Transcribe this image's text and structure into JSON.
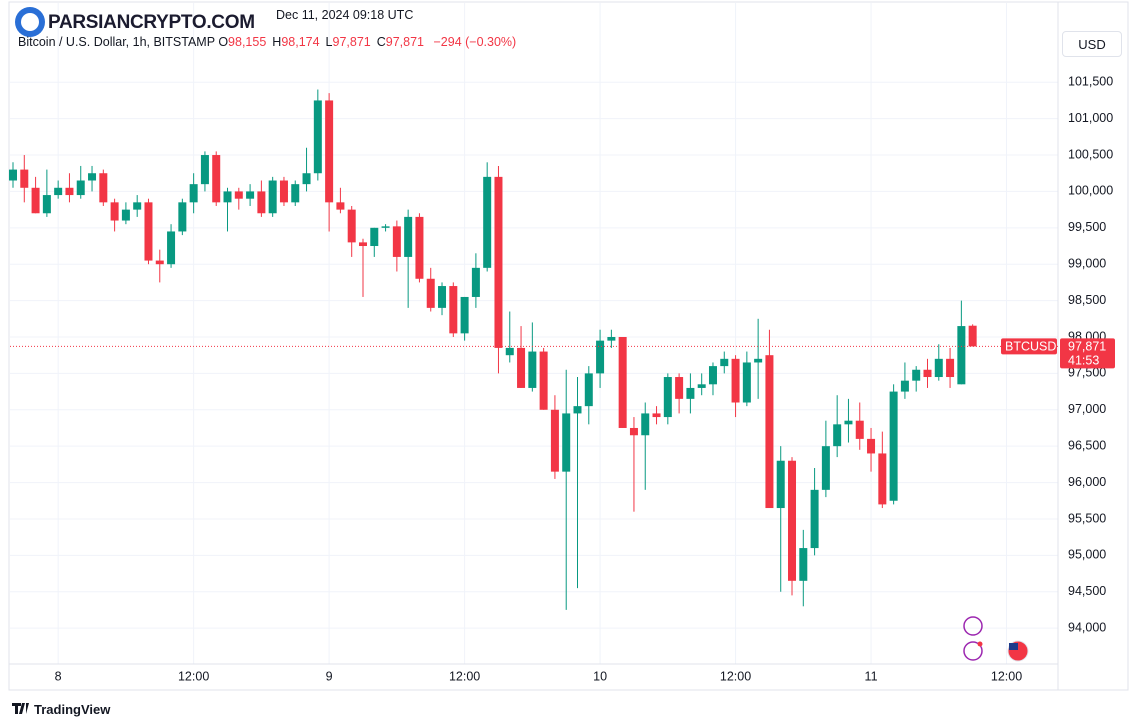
{
  "header": {
    "watermark": "PARSIANCRYPTO.COM",
    "published": "Dec 11, 2024 09:18 UTC",
    "symbol": "Bitcoin / U.S. Dollar, 1h, BITSTAMP",
    "ohlc": [
      {
        "label": "O",
        "value": "98,155"
      },
      {
        "label": "H",
        "value": "98,174"
      },
      {
        "label": "L",
        "value": "97,871"
      },
      {
        "label": "C",
        "value": "97,871"
      }
    ],
    "change": "−294 (−0.30%)",
    "currency": "USD"
  },
  "footer": {
    "brand": "TradingView"
  },
  "chart_data": {
    "type": "candlestick",
    "up_color": "#089981",
    "down_color": "#f23645",
    "grid": true,
    "categories": [
      null,
      null,
      null,
      null,
      "8",
      null,
      null,
      null,
      null,
      null,
      null,
      null,
      null,
      null,
      null,
      null,
      "12:00",
      null,
      null,
      null,
      null,
      null,
      null,
      null,
      null,
      null,
      null,
      null,
      "9",
      null,
      null,
      null,
      null,
      null,
      null,
      null,
      null,
      null,
      null,
      null,
      "12:00",
      null,
      null,
      null,
      null,
      null,
      null,
      null,
      null,
      null,
      null,
      null,
      "10",
      null,
      null,
      null,
      null,
      null,
      null,
      null,
      null,
      null,
      null,
      null,
      "12:00",
      null,
      null,
      null,
      null,
      null,
      null,
      null,
      null,
      null,
      null,
      null,
      "11",
      null,
      null,
      null,
      null,
      null,
      null,
      null,
      null,
      null,
      null,
      null,
      "12:00"
    ],
    "open": [
      100150,
      100300,
      100050,
      99700,
      99950,
      100050,
      99950,
      100150,
      100250,
      99850,
      99600,
      99750,
      99850,
      99050,
      99000,
      99450,
      99850,
      100100,
      100500,
      99850,
      100000,
      99900,
      100000,
      99700,
      100150,
      99850,
      100100,
      100250,
      101250,
      99850,
      99750,
      99300,
      99250,
      99500,
      99520,
      99100,
      99650,
      98800,
      98400,
      98700,
      98050,
      98550,
      98950,
      100200,
      97750,
      97850,
      97300,
      97800,
      97000,
      96150,
      96950,
      97050,
      97500,
      97950,
      98000,
      96750,
      96650,
      96950,
      96900,
      97450,
      97150,
      97300,
      97350,
      97600,
      97700,
      97100,
      97650,
      97750,
      95650,
      96300,
      94650,
      95100,
      95900,
      96500,
      96800,
      96850,
      96600,
      96400,
      95750,
      97250,
      97400,
      97550,
      97450,
      97700,
      97350,
      98155,
      null,
      null,
      null
    ],
    "high": [
      100400,
      100500,
      100200,
      100300,
      100150,
      100250,
      100350,
      100350,
      100300,
      99900,
      99850,
      99950,
      99900,
      99200,
      99550,
      99900,
      100250,
      100550,
      100550,
      100050,
      100050,
      100100,
      100150,
      100200,
      100200,
      100150,
      100600,
      101400,
      101350,
      100050,
      99800,
      99350,
      99500,
      99550,
      99600,
      99750,
      99700,
      98950,
      98750,
      98750,
      98550,
      99150,
      100400,
      100350,
      98350,
      98150,
      98200,
      97850,
      97200,
      97550,
      97450,
      97600,
      98100,
      98100,
      98000,
      96900,
      97100,
      97050,
      97500,
      97500,
      97500,
      97500,
      97650,
      97800,
      97750,
      97800,
      98250,
      98100,
      96500,
      96350,
      95350,
      96200,
      96850,
      97200,
      97150,
      97100,
      96750,
      96700,
      97350,
      97650,
      97600,
      97700,
      97900,
      97850,
      98500,
      98174,
      null,
      null,
      null
    ],
    "low": [
      100050,
      99850,
      99700,
      99650,
      99900,
      99850,
      99900,
      100000,
      99800,
      99450,
      99550,
      99650,
      99000,
      98750,
      98950,
      99400,
      99700,
      100000,
      99800,
      99450,
      99750,
      99800,
      99650,
      99650,
      99800,
      99800,
      100000,
      100150,
      99450,
      99700,
      99100,
      98550,
      99100,
      99450,
      98900,
      98400,
      98750,
      98350,
      98300,
      98000,
      97950,
      98400,
      98900,
      97500,
      97650,
      97300,
      97250,
      97000,
      96050,
      94250,
      94550,
      96800,
      97300,
      97850,
      96750,
      95600,
      95900,
      96800,
      96800,
      96950,
      96950,
      97200,
      97200,
      97500,
      96900,
      97050,
      97150,
      95650,
      94500,
      94450,
      94300,
      95000,
      95800,
      96350,
      96550,
      96450,
      96150,
      95650,
      95700,
      97150,
      97250,
      97300,
      97400,
      97300,
      97350,
      97871,
      null,
      null,
      null
    ],
    "close": [
      100300,
      100050,
      99700,
      99950,
      100050,
      99950,
      100150,
      100250,
      99850,
      99600,
      99750,
      99850,
      99050,
      99000,
      99450,
      99850,
      100100,
      100500,
      99850,
      100000,
      99900,
      100000,
      99700,
      100150,
      99850,
      100100,
      100250,
      101250,
      99850,
      99750,
      99300,
      99250,
      99500,
      99520,
      99100,
      99650,
      98800,
      98400,
      98700,
      98050,
      98550,
      98950,
      100200,
      97850,
      97850,
      97300,
      97800,
      97000,
      96150,
      96950,
      97050,
      97500,
      97950,
      98000,
      96750,
      96650,
      96950,
      96900,
      97450,
      97150,
      97300,
      97350,
      97600,
      97700,
      97100,
      97650,
      97700,
      95650,
      96300,
      94650,
      95100,
      95900,
      96500,
      96800,
      96850,
      96600,
      96400,
      95700,
      97250,
      97400,
      97550,
      97450,
      97700,
      97450,
      98150,
      97871,
      null,
      null,
      null
    ],
    "ylim": [
      93150,
      102630
    ],
    "yticks": [
      {
        "value": 94000,
        "label": "94,000"
      },
      {
        "value": 94500,
        "label": "94,500"
      },
      {
        "value": 95000,
        "label": "95,000"
      },
      {
        "value": 95500,
        "label": "95,500"
      },
      {
        "value": 96000,
        "label": "96,000"
      },
      {
        "value": 96500,
        "label": "96,500"
      },
      {
        "value": 97000,
        "label": "97,000"
      },
      {
        "value": 97500,
        "label": "97,500"
      },
      {
        "value": 98000,
        "label": "98,000"
      },
      {
        "value": 98500,
        "label": "98,500"
      },
      {
        "value": 99000,
        "label": "99,000"
      },
      {
        "value": 99500,
        "label": "99,500"
      },
      {
        "value": 100000,
        "label": "100,000"
      },
      {
        "value": 100500,
        "label": "100,500"
      },
      {
        "value": 101000,
        "label": "101,000"
      },
      {
        "value": 101500,
        "label": "101,500"
      }
    ],
    "symbol_tag": "BTCUSD",
    "last_price_label": "97,871",
    "countdown": "41:53"
  }
}
